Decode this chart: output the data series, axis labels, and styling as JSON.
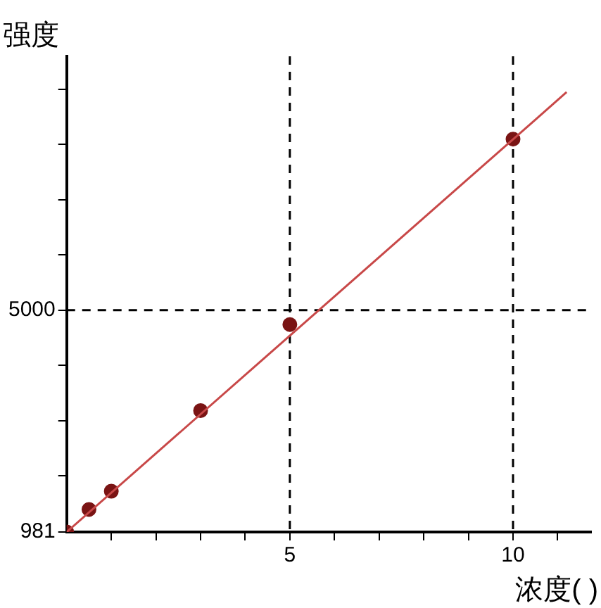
{
  "chart_data": {
    "type": "scatter",
    "xlabel": "浓度( )",
    "ylabel": "强度",
    "xlim": [
      0,
      11.75
    ],
    "ylim": [
      981,
      9600
    ],
    "xticks": [
      {
        "value": 1,
        "label": null
      },
      {
        "value": 2,
        "label": null
      },
      {
        "value": 3,
        "label": null
      },
      {
        "value": 4,
        "label": null
      },
      5,
      {
        "value": 6,
        "label": null
      },
      {
        "value": 7,
        "label": null
      },
      {
        "value": 8,
        "label": null
      },
      {
        "value": 9,
        "label": null
      },
      10,
      {
        "value": 11,
        "label": null
      }
    ],
    "yticks": [
      981,
      {
        "value": 2000,
        "label": null
      },
      {
        "value": 3000,
        "label": null
      },
      {
        "value": 4000,
        "label": null
      },
      5000,
      {
        "value": 6000,
        "label": null
      },
      {
        "value": 7000,
        "label": null
      },
      {
        "value": 8000,
        "label": null
      },
      {
        "value": 9000,
        "label": null
      }
    ],
    "grid": false,
    "legend": false,
    "series": [
      {
        "type": "line",
        "color": "#c84848",
        "x": [
          0,
          11.2
        ],
        "values": [
          981,
          8950
        ],
        "marker": "none",
        "line_style": "solid"
      },
      {
        "color": "#7a1414",
        "x": [
          0,
          0.5,
          1,
          3,
          5,
          10
        ],
        "values": [
          981,
          1390,
          1720,
          3180,
          4740,
          8100
        ],
        "marker": "circle"
      }
    ],
    "ref_lines": [
      {
        "axis": "x",
        "value": 5,
        "color": "#000000",
        "line_style": "dashed"
      },
      {
        "axis": "x",
        "value": 10,
        "color": "#000000",
        "line_style": "dashed"
      },
      {
        "axis": "y",
        "value": 5000,
        "color": "#000000",
        "line_style": "dashed"
      }
    ]
  }
}
